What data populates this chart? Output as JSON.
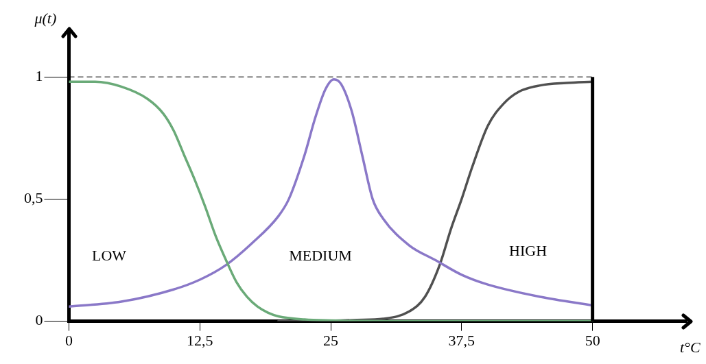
{
  "chart_data": {
    "type": "line",
    "xlabel": "t°C",
    "ylabel": "μ(t)",
    "xlim": [
      0,
      59
    ],
    "ylim": [
      0,
      1.18
    ],
    "xticks": [
      0,
      {
        "value": 12.5,
        "label": "12,5"
      },
      25,
      {
        "value": 37.5,
        "label": "37,5"
      },
      50
    ],
    "yticks": [
      0,
      {
        "value": 0.5,
        "label": "0,5"
      },
      1
    ],
    "grid": false,
    "legend": false,
    "marker": "none",
    "line_style": "solid",
    "series": [
      {
        "color": "#6aaa78",
        "x": [
          0,
          2.5,
          5,
          7.5,
          9,
          10,
          11,
          12,
          13,
          14,
          15,
          16,
          17,
          18,
          19,
          20,
          22.5,
          25,
          30,
          40,
          50
        ],
        "values": [
          0.98,
          0.98,
          0.96,
          0.91,
          0.85,
          0.78,
          0.68,
          0.58,
          0.47,
          0.35,
          0.25,
          0.16,
          0.1,
          0.06,
          0.035,
          0.02,
          0.007,
          0.003,
          0,
          0,
          0
        ]
      },
      {
        "color": "#8a78c8",
        "x": [
          0,
          5,
          10,
          12.5,
          15,
          17.5,
          20,
          21,
          22.5,
          23.5,
          24.5,
          25.3,
          26,
          27,
          28,
          29,
          30,
          32.5,
          35,
          37.5,
          40,
          45,
          50
        ],
        "values": [
          0.06,
          0.08,
          0.13,
          0.17,
          0.23,
          0.32,
          0.43,
          0.5,
          0.68,
          0.83,
          0.95,
          0.99,
          0.97,
          0.86,
          0.68,
          0.5,
          0.42,
          0.31,
          0.25,
          0.19,
          0.15,
          0.1,
          0.065
        ]
      },
      {
        "color": "#505050",
        "x": [
          20,
          25,
          27.5,
          30,
          32.5,
          34,
          35.4,
          36.5,
          37.5,
          38.5,
          40,
          41.5,
          43,
          45,
          47.5,
          50
        ],
        "values": [
          0,
          0.002,
          0.005,
          0.01,
          0.04,
          0.1,
          0.23,
          0.38,
          0.5,
          0.63,
          0.8,
          0.89,
          0.94,
          0.965,
          0.975,
          0.98
        ]
      }
    ],
    "ref_lines": [
      {
        "axis": "y",
        "value": 1,
        "color": "#000000",
        "line_style": "dashed"
      },
      {
        "axis": "x",
        "value": 50,
        "color": "#000000",
        "line_style": "solid"
      }
    ],
    "annotations": [
      "LOW",
      "MEDIUM",
      "HIGH"
    ]
  }
}
